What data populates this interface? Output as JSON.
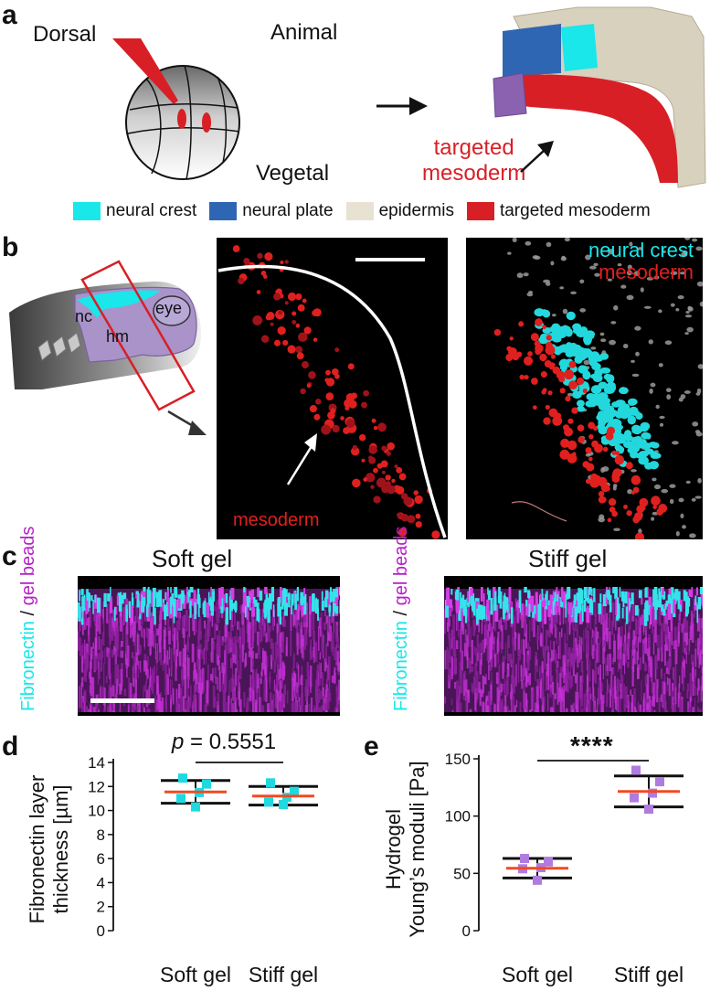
{
  "panels": {
    "a": {
      "letter": "a",
      "dorsal": "Dorsal",
      "animal": "Animal",
      "vegetal": "Vegetal",
      "targeted_label_line1": "targeted",
      "targeted_label_line2": "mesoderm",
      "legend": [
        {
          "label": "neural crest",
          "color": "#19e7ea"
        },
        {
          "label": "neural plate",
          "color": "#2f66b3"
        },
        {
          "label": "epidermis",
          "color": "#e8e2d3"
        },
        {
          "label": "targeted mesoderm",
          "color": "#d81f26"
        }
      ]
    },
    "b": {
      "letter": "b",
      "nc": "nc",
      "hm": "hm",
      "eye": "eye",
      "mesoderm_label": "mesoderm",
      "overlay_neural_crest": "neural crest",
      "overlay_mesoderm": "mesoderm"
    },
    "c": {
      "letter": "c",
      "soft_title": "Soft gel",
      "stiff_title": "Stiff gel",
      "ylabel_fibronectin": "Fibronectin",
      "ylabel_slash": " / ",
      "ylabel_beads": "gel beads"
    },
    "d": {
      "letter": "d",
      "pvalue_prefix": "p",
      "pvalue_rest": " = 0.5551"
    },
    "e": {
      "letter": "e",
      "significance": "****"
    }
  },
  "colors": {
    "cyan": "#19e7ea",
    "magenta": "#b520c8",
    "red": "#d81f26",
    "orange_mean": "#f04a24",
    "square_cyan": "#1fd9e0",
    "square_lilac": "#b07be0"
  },
  "chart_data": [
    {
      "id": "d",
      "type": "scatter",
      "ylabel_line1": "Fibronectin layer",
      "ylabel_line2": "thickness [µm]",
      "categories": [
        "Soft gel",
        "Stiff gel"
      ],
      "ylim": [
        0,
        14
      ],
      "yticks": [
        "0",
        "2",
        "4",
        "6",
        "8",
        "10",
        "12",
        "14"
      ],
      "series": [
        {
          "category": "Soft gel",
          "points": [
            12.7,
            12.2,
            11.5,
            11.0,
            10.3
          ],
          "mean": 11.55,
          "sd_upper": 12.5,
          "sd_lower": 10.6
        },
        {
          "category": "Stiff gel",
          "points": [
            12.3,
            11.6,
            11.1,
            10.7,
            10.5
          ],
          "mean": 11.2,
          "sd_upper": 12.0,
          "sd_lower": 10.45
        }
      ]
    },
    {
      "id": "e",
      "type": "scatter",
      "ylabel_line1": "Hydrogel",
      "ylabel_line2": "Young’s moduli [Pa]",
      "categories": [
        "Soft gel",
        "Stiff gel"
      ],
      "ylim": [
        0,
        150
      ],
      "yticks": [
        "0",
        "50",
        "100",
        "150"
      ],
      "series": [
        {
          "category": "Soft gel",
          "points": [
            63,
            60,
            55,
            54,
            44
          ],
          "mean": 54.5,
          "sd_upper": 63,
          "sd_lower": 46
        },
        {
          "category": "Stiff gel",
          "points": [
            140,
            130,
            120,
            116,
            106
          ],
          "mean": 121.5,
          "sd_upper": 135,
          "sd_lower": 108
        }
      ]
    }
  ]
}
